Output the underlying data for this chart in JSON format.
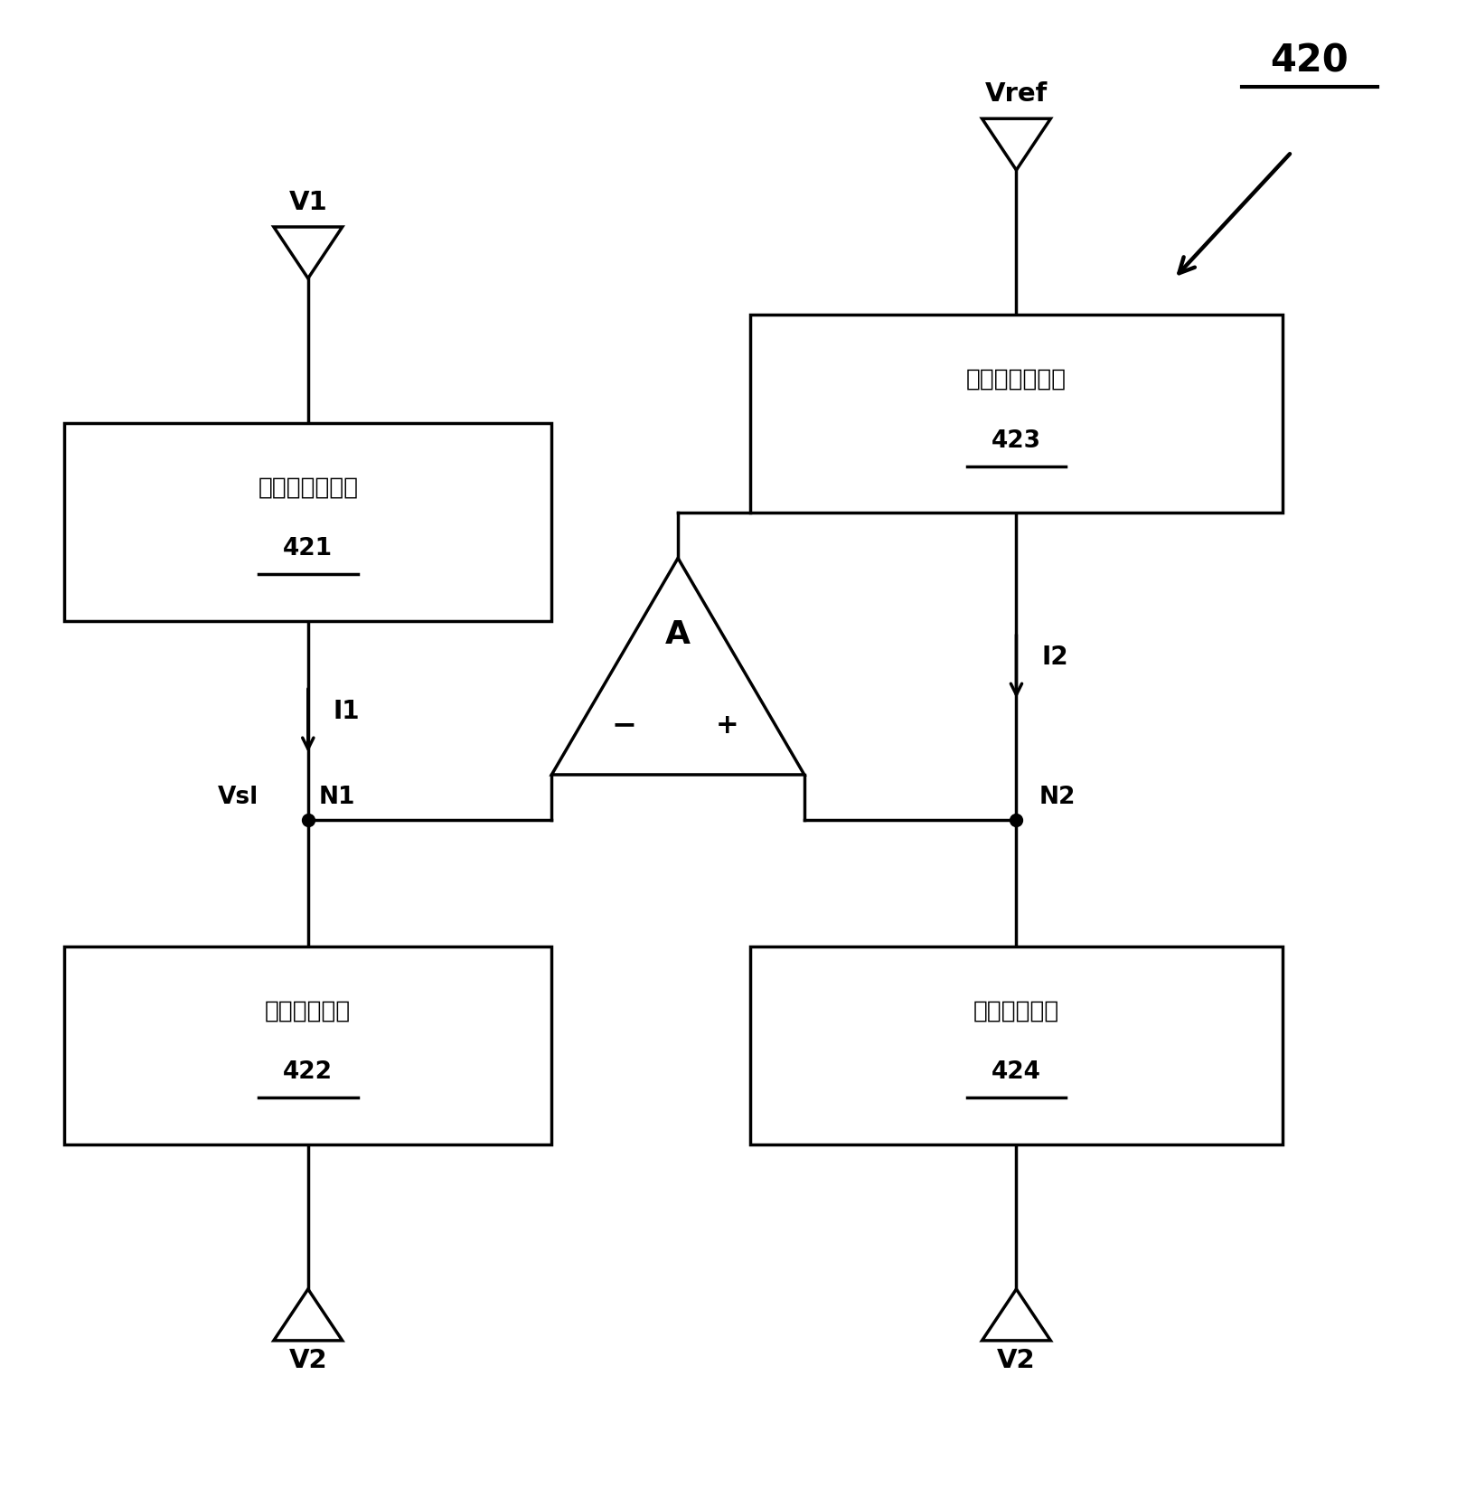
{
  "background_color": "#ffffff",
  "fig_width": 16.12,
  "fig_height": 16.67,
  "dpi": 100,
  "label_420": "420",
  "label_421": "421",
  "label_422": "422",
  "label_423": "423",
  "label_424": "424",
  "box1_text": "第一电流源电路",
  "box2_text": "第一储能电路",
  "box3_text": "第二电流源电路",
  "box4_text": "第二储能电路",
  "amp_label": "A",
  "node1_label": "N1",
  "node2_label": "N2",
  "vsl_label": "Vsl",
  "v1_label": "V1",
  "v2_label": "V2",
  "vref_label": "Vref",
  "i1_label": "I1",
  "i2_label": "I2",
  "minus_label": "−",
  "plus_label": "+"
}
